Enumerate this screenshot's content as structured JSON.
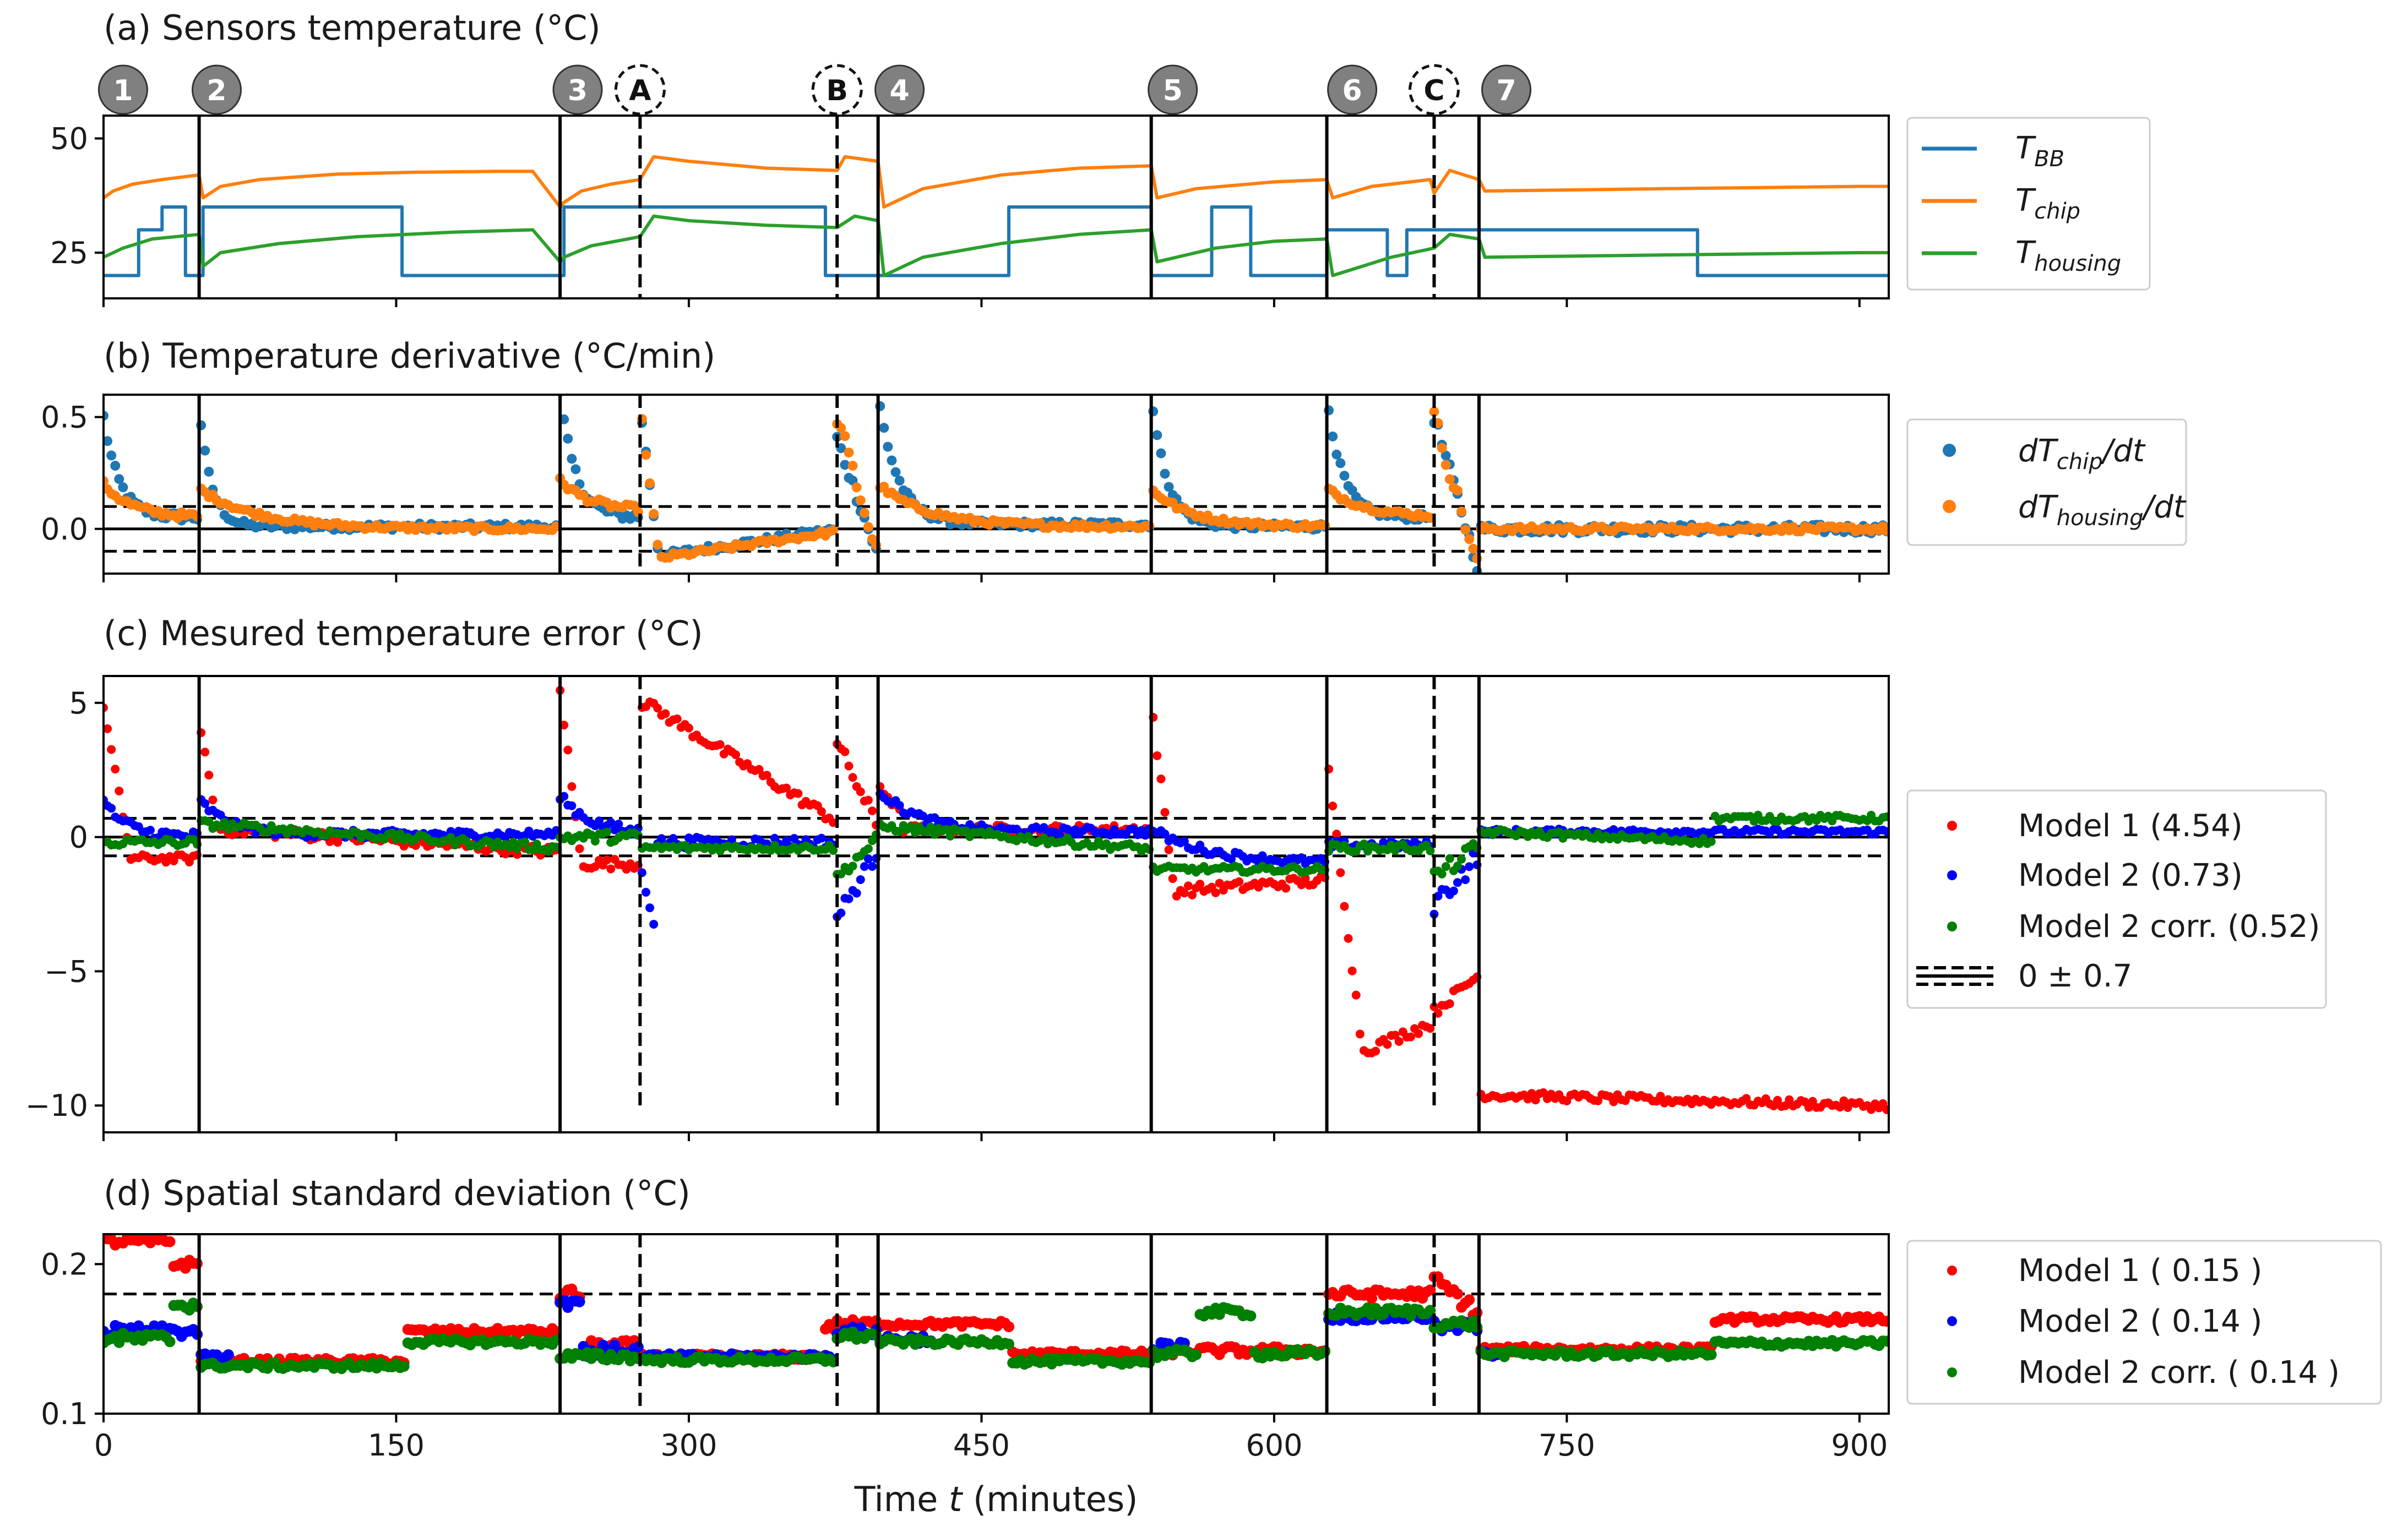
{
  "figure": {
    "xlabel_pre": "Time ",
    "xlabel_var": "t",
    "xlabel_post": " (minutes)"
  },
  "phase_markers": {
    "numbered": [
      {
        "label": "1",
        "x": 10
      },
      {
        "label": "2",
        "x": 58
      },
      {
        "label": "3",
        "x": 243
      },
      {
        "label": "4",
        "x": 408
      },
      {
        "label": "5",
        "x": 548
      },
      {
        "label": "6",
        "x": 640
      },
      {
        "label": "7",
        "x": 719
      }
    ],
    "lettered": [
      {
        "label": "A",
        "x": 275
      },
      {
        "label": "B",
        "x": 376
      },
      {
        "label": "C",
        "x": 682
      }
    ]
  },
  "colors": {
    "blue": "#1f77b4",
    "orange": "#ff7f0e",
    "green": "#2ca02c",
    "red": "#ff0000",
    "pure_blue": "#0000ff",
    "dark_green": "#008000",
    "marker_gray": "#808080"
  },
  "chart_data": [
    {
      "type": "line",
      "title": "(a) Sensors temperature (°C)",
      "xlim": [
        0,
        915
      ],
      "ylim": [
        15,
        55
      ],
      "yticks": [
        25,
        50
      ],
      "xticks": [
        0,
        150,
        300,
        450,
        600,
        750,
        900
      ],
      "xticklabels_shown": false,
      "vlines_solid": [
        49,
        234,
        397,
        537,
        627,
        705
      ],
      "vlines_dashed": [
        275,
        376,
        682
      ],
      "series": [
        {
          "name": "T_BB",
          "legend_main": "T",
          "legend_sub": "BB",
          "color": "#1f77b4",
          "x": [
            0,
            18,
            18,
            30,
            30,
            42,
            42,
            49,
            49,
            51,
            51,
            153,
            153,
            234,
            234,
            236,
            236,
            370,
            370,
            397,
            397,
            464,
            464,
            537,
            537,
            568,
            568,
            588,
            588,
            627,
            627,
            658,
            658,
            668,
            668,
            705,
            705,
            708,
            708,
            817,
            817,
            915
          ],
          "y": [
            20,
            20,
            30,
            30,
            35,
            35,
            20,
            20,
            20,
            20,
            35,
            35,
            20,
            20,
            20,
            20,
            35,
            35,
            20,
            20,
            20,
            20,
            35,
            35,
            20,
            20,
            35,
            35,
            20,
            20,
            30,
            30,
            20,
            20,
            30,
            30,
            30,
            30,
            30,
            30,
            20,
            20
          ]
        },
        {
          "name": "T_chip",
          "legend_main": "T",
          "legend_sub": "chip",
          "color": "#ff7f0e",
          "x": [
            0,
            5,
            15,
            30,
            49,
            51,
            60,
            80,
            120,
            160,
            200,
            220,
            234,
            236,
            245,
            260,
            275,
            282,
            300,
            340,
            376,
            380,
            397,
            400,
            420,
            460,
            500,
            537,
            540,
            560,
            600,
            627,
            630,
            650,
            680,
            682,
            690,
            705,
            708,
            800,
            900,
            915
          ],
          "y": [
            37,
            38.5,
            40,
            41,
            42,
            37,
            39.5,
            41,
            42.2,
            42.6,
            42.8,
            42.8,
            35,
            36,
            38.5,
            40,
            41,
            46,
            45,
            43.5,
            43,
            46,
            45,
            35,
            39,
            42,
            43.5,
            44,
            37,
            39,
            40.5,
            41,
            37,
            39.5,
            41,
            38,
            43,
            41,
            38.5,
            39,
            39.5,
            39.5
          ]
        },
        {
          "name": "T_housing",
          "legend_main": "T",
          "legend_sub": "housing",
          "color": "#2ca02c",
          "x": [
            0,
            10,
            25,
            49,
            51,
            60,
            90,
            130,
            180,
            220,
            234,
            236,
            250,
            275,
            282,
            300,
            340,
            376,
            385,
            397,
            400,
            420,
            460,
            500,
            537,
            540,
            570,
            600,
            627,
            630,
            660,
            682,
            690,
            705,
            708,
            800,
            900,
            915
          ],
          "y": [
            24,
            26,
            28,
            29,
            22,
            25,
            27,
            28.5,
            29.5,
            30,
            23,
            24,
            26.5,
            28.5,
            33,
            32,
            31,
            30.5,
            33,
            32,
            20,
            24,
            27,
            29,
            30,
            23,
            26,
            27.5,
            28,
            20,
            24,
            26,
            29,
            28,
            24,
            24.5,
            25,
            25
          ]
        }
      ]
    },
    {
      "type": "scatter",
      "title": "(b) Temperature derivative (°C/min)",
      "xlim": [
        0,
        915
      ],
      "ylim": [
        -0.2,
        0.6
      ],
      "yticks": [
        0.0,
        0.5
      ],
      "ytick_labels": [
        "0.0",
        "0.5"
      ],
      "hlines_solid": [
        0
      ],
      "hlines_dashed": [
        0.1,
        -0.1
      ],
      "vlines_solid": [
        49,
        234,
        397,
        537,
        627,
        705
      ],
      "vlines_dashed": [
        275,
        376,
        682
      ],
      "series": [
        {
          "name": "dT_chip/dt",
          "legend_pre": "dT",
          "legend_sub": "chip",
          "legend_post": "/dt",
          "color": "#1f77b4"
        },
        {
          "name": "dT_housing/dt",
          "legend_pre": "dT",
          "legend_sub": "housing",
          "legend_post": "/dt",
          "color": "#ff7f0e"
        }
      ]
    },
    {
      "type": "scatter",
      "title": "(c) Mesured temperature error (°C)",
      "xlim": [
        0,
        915
      ],
      "ylim": [
        -11,
        6
      ],
      "yticks": [
        -10,
        -5,
        0,
        5
      ],
      "ytick_labels": [
        "−10",
        "−5",
        "0",
        "5"
      ],
      "hlines_solid": [
        0
      ],
      "hlines_dashed": [
        0.7,
        -0.7
      ],
      "vlines_solid": [
        49,
        234,
        397,
        537,
        627,
        705
      ],
      "vlines_dashed": [
        275,
        376,
        682
      ],
      "series": [
        {
          "name": "Model 1 (4.54)",
          "color": "#ff0000"
        },
        {
          "name": "Model 2 (0.73)",
          "color": "#0000ff"
        },
        {
          "name": "Model 2 corr. (0.52)",
          "color": "#008000"
        }
      ],
      "band_legend": "0 ± 0.7"
    },
    {
      "type": "scatter",
      "title": "(d) Spatial standard deviation (°C)",
      "xlim": [
        0,
        915
      ],
      "ylim": [
        0.1,
        0.22
      ],
      "yticks": [
        0.1,
        0.2
      ],
      "ytick_labels": [
        "0.1",
        "0.2"
      ],
      "xticks": [
        0,
        150,
        300,
        450,
        600,
        750,
        900
      ],
      "xtick_labels": [
        "0",
        "150",
        "300",
        "450",
        "600",
        "750",
        "900"
      ],
      "hlines_dashed": [
        0.18
      ],
      "vlines_solid": [
        49,
        234,
        397,
        537,
        627,
        705
      ],
      "vlines_dashed": [
        275,
        376,
        682
      ],
      "series": [
        {
          "name": "Model 1 ( 0.15 )",
          "color": "#ff0000"
        },
        {
          "name": "Model 2 ( 0.14 )",
          "color": "#0000ff"
        },
        {
          "name": "Model 2 corr. ( 0.14 )",
          "color": "#008000"
        }
      ]
    }
  ]
}
